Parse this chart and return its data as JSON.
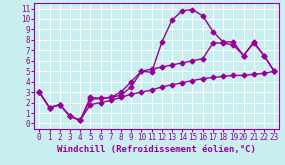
{
  "xlabel": "Windchill (Refroidissement éolien,°C)",
  "bg_color": "#c8eef0",
  "line_color": "#990099",
  "grid_color": "#ffffff",
  "xlim": [
    -0.5,
    23.5
  ],
  "ylim": [
    -0.5,
    11.5
  ],
  "xticks": [
    0,
    1,
    2,
    3,
    4,
    5,
    6,
    7,
    8,
    9,
    10,
    11,
    12,
    13,
    14,
    15,
    16,
    17,
    18,
    19,
    20,
    21,
    22,
    23
  ],
  "yticks": [
    0,
    1,
    2,
    3,
    4,
    5,
    6,
    7,
    8,
    9,
    10,
    11
  ],
  "line1_x": [
    0,
    1,
    2,
    3,
    4,
    5,
    6,
    7,
    8,
    9,
    10,
    11,
    12,
    13,
    14,
    15,
    16,
    17,
    18,
    19,
    20,
    21,
    22,
    23
  ],
  "line1_y": [
    3.0,
    1.5,
    1.8,
    0.7,
    0.3,
    2.5,
    2.4,
    2.5,
    2.7,
    3.5,
    5.0,
    4.9,
    7.8,
    9.9,
    10.8,
    10.9,
    10.3,
    8.8,
    7.8,
    7.8,
    6.5,
    7.8,
    6.5,
    5.0
  ],
  "line2_x": [
    0,
    1,
    2,
    3,
    4,
    5,
    6,
    7,
    8,
    9,
    10,
    11,
    12,
    13,
    14,
    15,
    16,
    17,
    18,
    19,
    20,
    21,
    22,
    23
  ],
  "line2_y": [
    3.0,
    1.5,
    1.8,
    0.7,
    0.3,
    2.3,
    2.4,
    2.5,
    3.0,
    4.0,
    5.0,
    5.2,
    5.4,
    5.6,
    5.8,
    6.0,
    6.2,
    7.7,
    7.7,
    7.5,
    6.5,
    7.7,
    6.5,
    5.0
  ],
  "line3_x": [
    0,
    1,
    2,
    3,
    4,
    5,
    6,
    7,
    8,
    9,
    10,
    11,
    12,
    13,
    14,
    15,
    16,
    17,
    18,
    19,
    20,
    21,
    22,
    23
  ],
  "line3_y": [
    3.0,
    1.5,
    1.8,
    0.7,
    0.3,
    1.8,
    2.0,
    2.2,
    2.5,
    2.8,
    3.0,
    3.2,
    3.5,
    3.7,
    3.9,
    4.1,
    4.3,
    4.4,
    4.5,
    4.6,
    4.6,
    4.7,
    4.8,
    5.0
  ],
  "marker": "D",
  "markersize": 2.5,
  "linewidth": 1.0,
  "xlabel_fontsize": 6.5,
  "tick_fontsize": 5.5
}
